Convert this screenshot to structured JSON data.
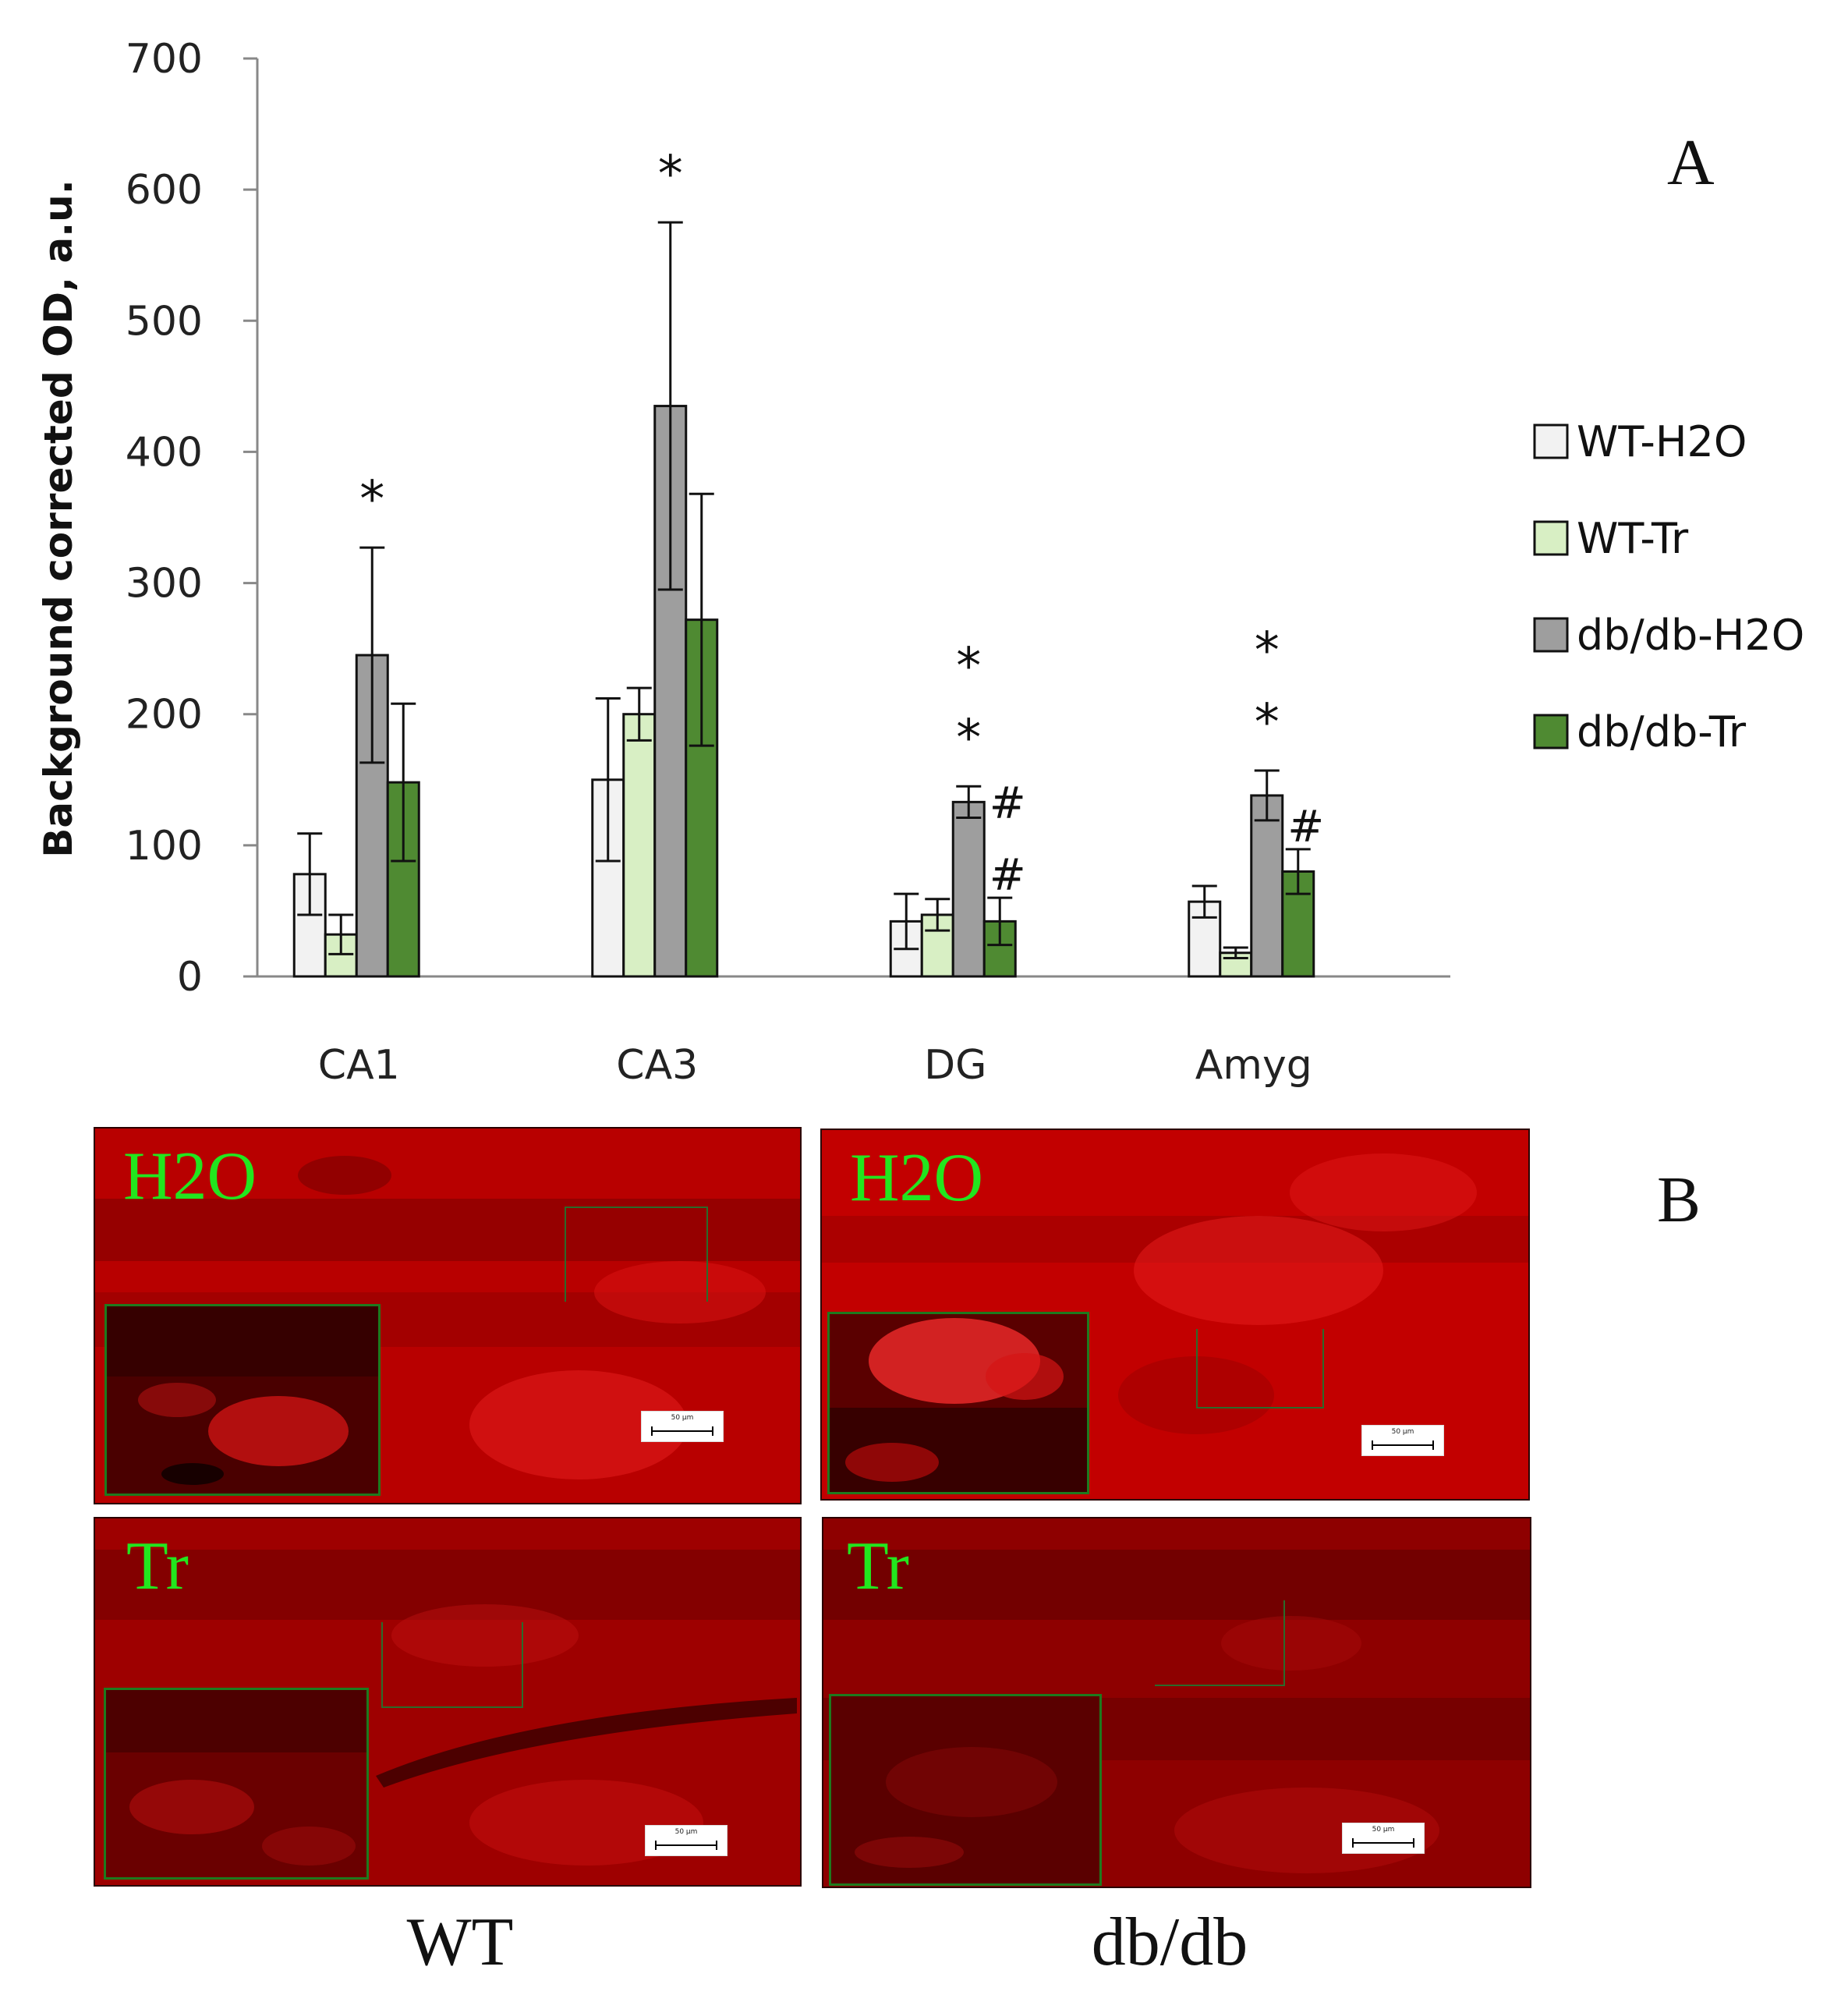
{
  "chart_data": {
    "type": "bar",
    "panel_label": "A",
    "ylabel": "Background corrected OD, a.u.",
    "xlabel": "",
    "ylim": [
      0,
      700
    ],
    "yticks": [
      "0",
      "100",
      "200",
      "300",
      "400",
      "500",
      "600",
      "700"
    ],
    "categories": [
      "CA1",
      "CA3",
      "DG",
      "Amyg"
    ],
    "legend_position": "right",
    "series": [
      {
        "name": "WT-H2O",
        "color": "#f2f2f2",
        "values": [
          78,
          150,
          42,
          57
        ],
        "errors": [
          31,
          62,
          21,
          12
        ]
      },
      {
        "name": "WT-Tr",
        "color": "#d8efc4",
        "values": [
          32,
          200,
          47,
          18
        ],
        "errors": [
          15,
          20,
          12,
          4
        ]
      },
      {
        "name": "db/db-H2O",
        "color": "#9e9e9e",
        "values": [
          245,
          435,
          133,
          138
        ],
        "errors": [
          82,
          140,
          12,
          19
        ]
      },
      {
        "name": "db/db-Tr",
        "color": "#4f8a32",
        "values": [
          148,
          272,
          42,
          80
        ],
        "errors": [
          60,
          96,
          18,
          17
        ]
      }
    ],
    "annotations": [
      {
        "category": "CA1",
        "series": "db/db-H2O",
        "marks": [
          "*"
        ]
      },
      {
        "category": "CA3",
        "series": "db/db-H2O",
        "marks": [
          "*"
        ]
      },
      {
        "category": "DG",
        "series": "db/db-H2O",
        "marks": [
          "*",
          "*"
        ]
      },
      {
        "category": "DG",
        "series": "db/db-Tr",
        "marks": [
          "#",
          "#"
        ]
      },
      {
        "category": "Amyg",
        "series": "db/db-H2O",
        "marks": [
          "*",
          "*"
        ]
      },
      {
        "category": "Amyg",
        "series": "db/db-Tr",
        "marks": [
          "#"
        ]
      }
    ]
  },
  "panel_b": {
    "panel_label": "B",
    "group_labels": {
      "wt": "WT",
      "dbdb": "db/db"
    },
    "images": {
      "wt_h2o": {
        "label": "H2O",
        "scale_text": "50 µm"
      },
      "dbdb_h2o": {
        "label": "H2O",
        "scale_text": "50 µm"
      },
      "wt_tr": {
        "label": "Tr",
        "scale_text": "50 µm"
      },
      "dbdb_tr": {
        "label": "Tr",
        "scale_text": "50 µm"
      }
    }
  }
}
